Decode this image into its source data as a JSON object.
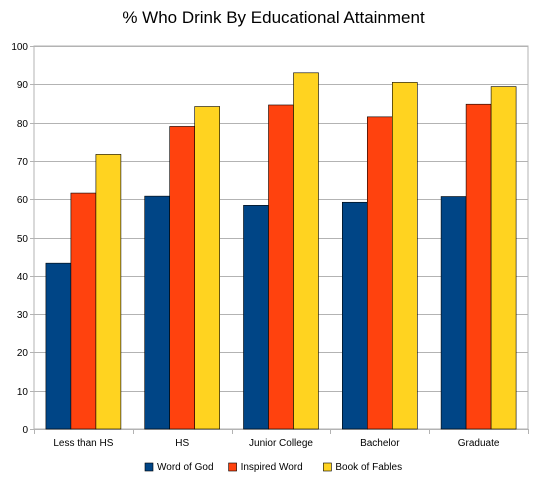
{
  "chart_data": {
    "type": "bar",
    "title": "% Who Drink By Educational Attainment",
    "xlabel": "",
    "ylabel": "",
    "categories": [
      "Less than HS",
      "HS",
      "Junior College",
      "Bachelor",
      "Graduate"
    ],
    "series": [
      {
        "name": "Word of God",
        "color": "#004586",
        "values": [
          43.3,
          60.8,
          58.4,
          59.2,
          60.7
        ]
      },
      {
        "name": "Inspired Word",
        "color": "#ff420e",
        "values": [
          61.6,
          79.0,
          84.6,
          81.5,
          84.8
        ]
      },
      {
        "name": "Book of Fables",
        "color": "#ffd320",
        "values": [
          71.7,
          84.2,
          93.0,
          90.5,
          89.4
        ]
      }
    ],
    "ylim": [
      0,
      100
    ],
    "yticks": [
      0,
      10,
      20,
      30,
      40,
      50,
      60,
      70,
      80,
      90,
      100
    ],
    "grid": true,
    "legend_position": "bottom"
  }
}
